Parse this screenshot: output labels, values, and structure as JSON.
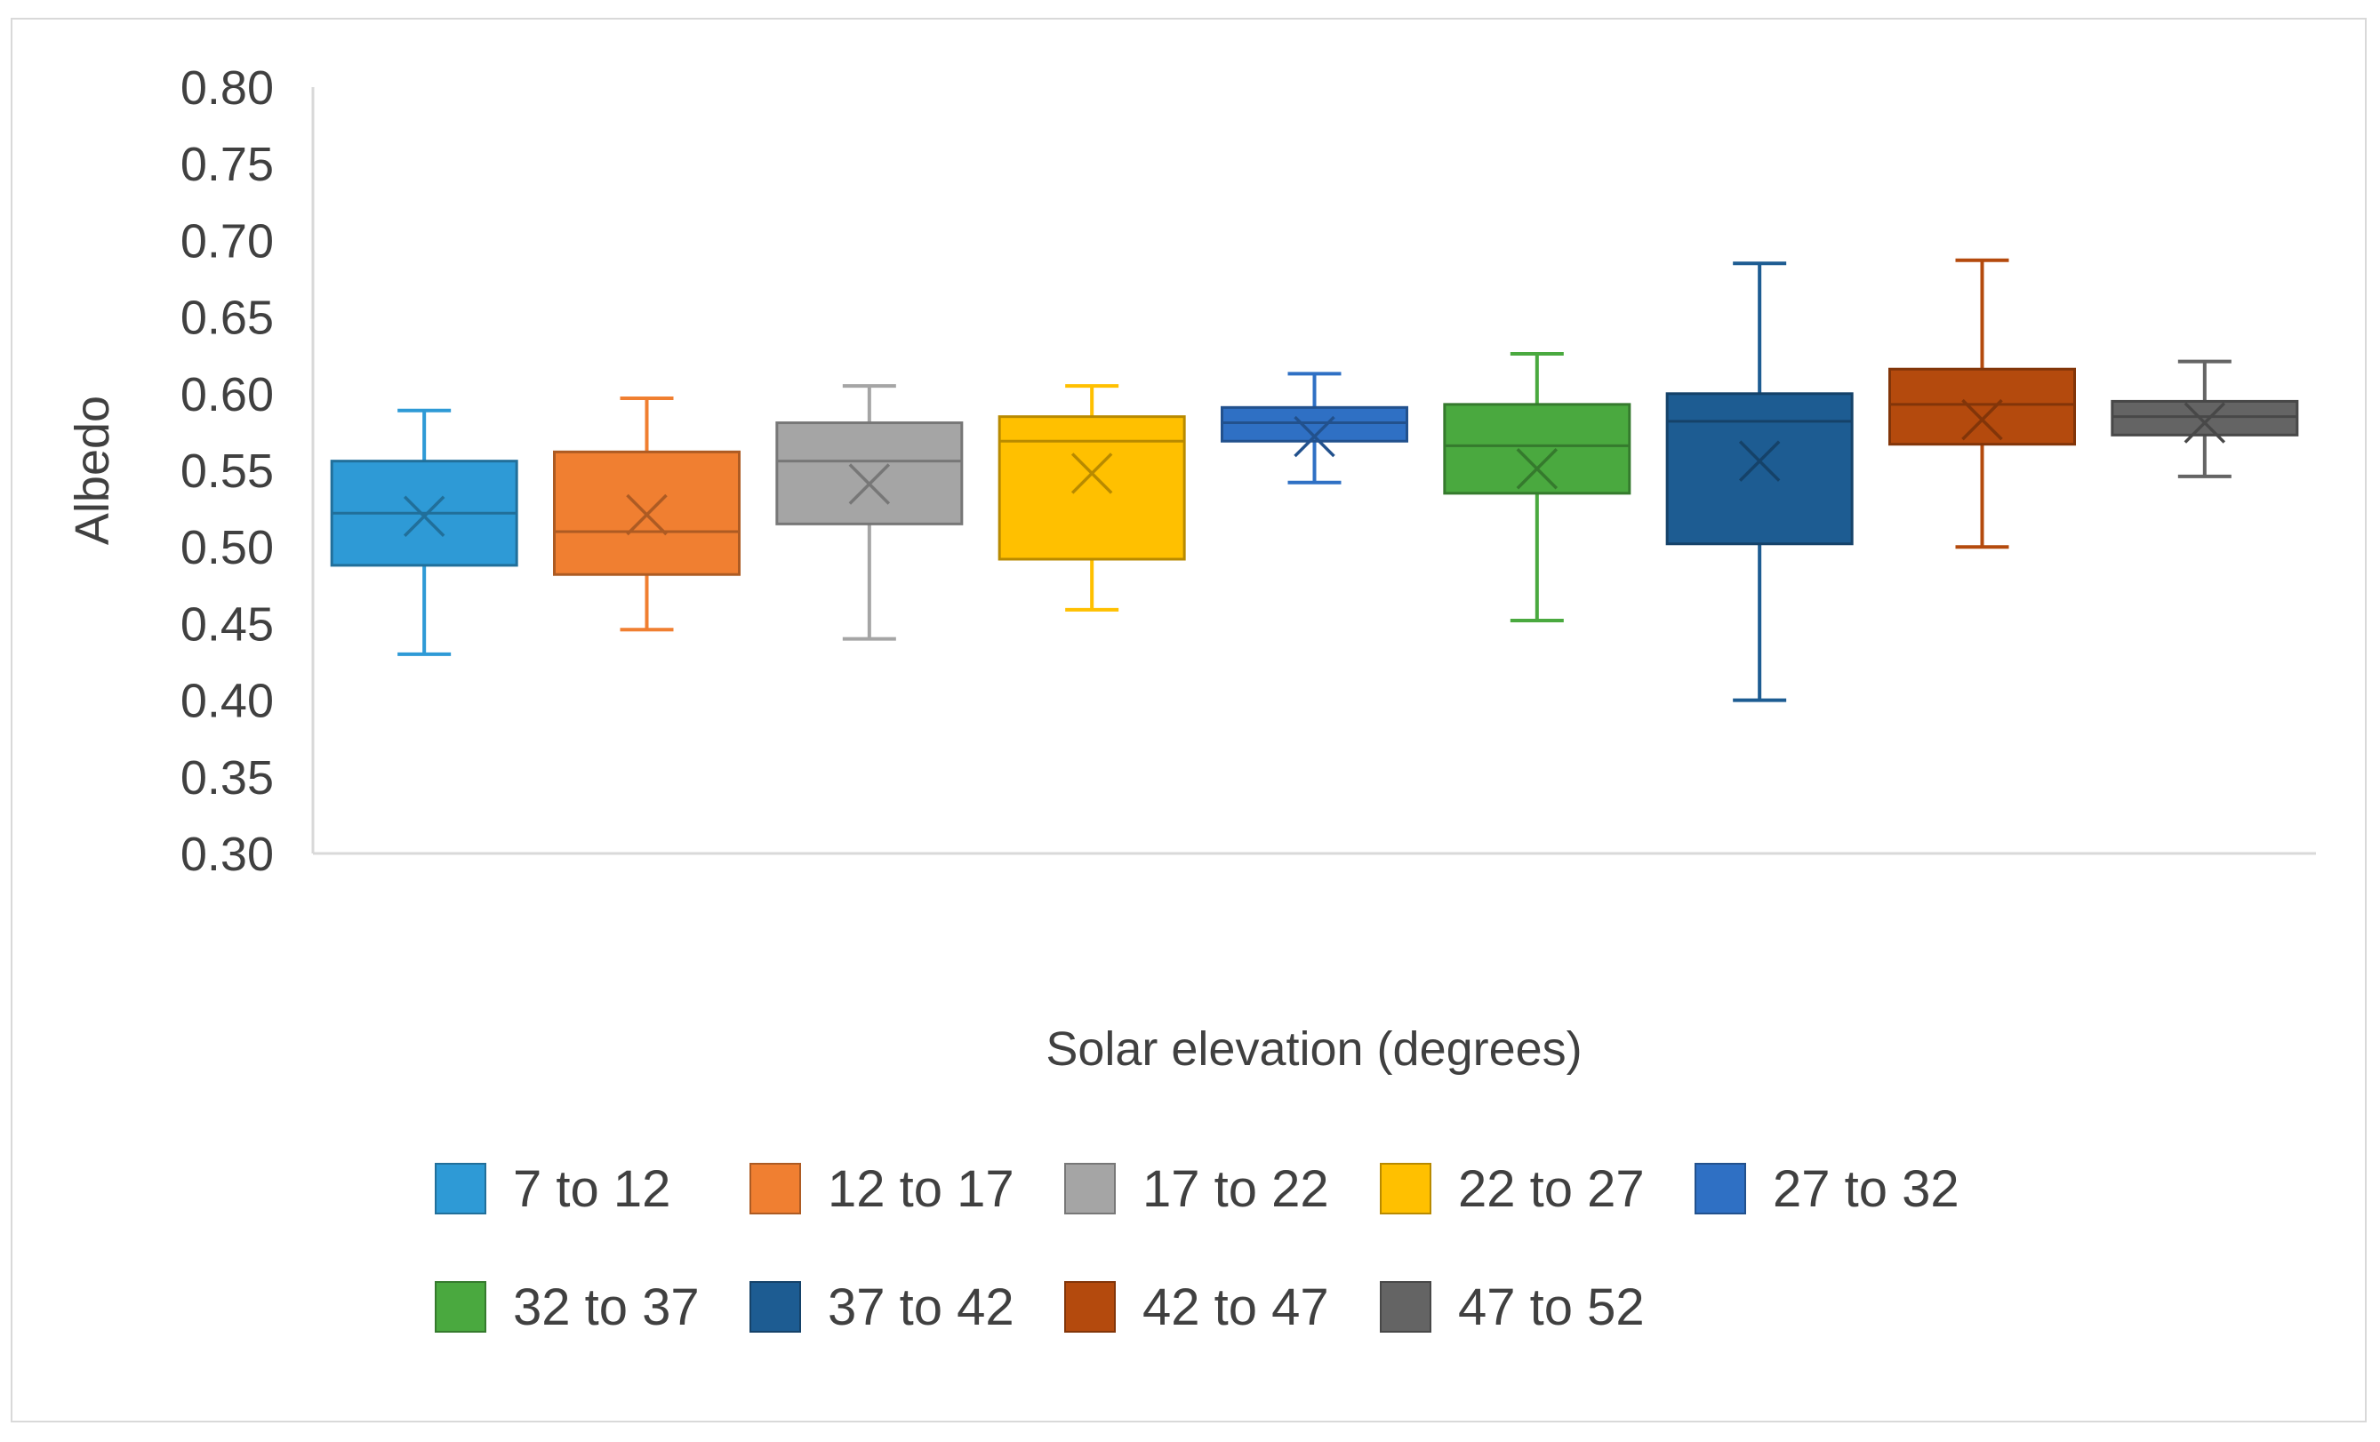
{
  "chart_data": {
    "type": "boxplot",
    "title": "",
    "xlabel": "Solar elevation (degrees)",
    "ylabel": "Albedo",
    "ylim": [
      0.3,
      0.8
    ],
    "yticks": [
      "0.80",
      "0.75",
      "0.70",
      "0.65",
      "0.60",
      "0.55",
      "0.50",
      "0.45",
      "0.40",
      "0.35",
      "0.30"
    ],
    "grid": false,
    "legend_position": "bottom",
    "series": [
      {
        "name": "7 to 12",
        "color": "#2E9AD6",
        "min": 0.43,
        "q1": 0.488,
        "median": 0.522,
        "mean": 0.52,
        "q3": 0.556,
        "max": 0.589
      },
      {
        "name": "12 to 17",
        "color": "#F07F31",
        "min": 0.446,
        "q1": 0.482,
        "median": 0.51,
        "mean": 0.521,
        "q3": 0.562,
        "max": 0.597
      },
      {
        "name": "17 to 22",
        "color": "#A5A5A5",
        "min": 0.44,
        "q1": 0.515,
        "median": 0.556,
        "mean": 0.541,
        "q3": 0.581,
        "max": 0.605
      },
      {
        "name": "22 to 27",
        "color": "#FFC000",
        "min": 0.459,
        "q1": 0.492,
        "median": 0.569,
        "mean": 0.548,
        "q3": 0.585,
        "max": 0.605
      },
      {
        "name": "27 to 32",
        "color": "#2F70C4",
        "min": 0.542,
        "q1": 0.569,
        "median": 0.581,
        "mean": 0.572,
        "q3": 0.591,
        "max": 0.613
      },
      {
        "name": "32 to 37",
        "color": "#4AA93F",
        "min": 0.452,
        "q1": 0.535,
        "median": 0.566,
        "mean": 0.551,
        "q3": 0.593,
        "max": 0.626
      },
      {
        "name": "37 to 42",
        "color": "#1D5C92",
        "min": 0.4,
        "q1": 0.502,
        "median": 0.582,
        "mean": 0.556,
        "q3": 0.6,
        "max": 0.685
      },
      {
        "name": "42 to 47",
        "color": "#B44A0D",
        "min": 0.5,
        "q1": 0.567,
        "median": 0.593,
        "mean": 0.583,
        "q3": 0.616,
        "max": 0.687
      },
      {
        "name": "47 to 52",
        "color": "#646464",
        "min": 0.546,
        "q1": 0.573,
        "median": 0.585,
        "mean": 0.581,
        "q3": 0.595,
        "max": 0.621
      }
    ]
  }
}
